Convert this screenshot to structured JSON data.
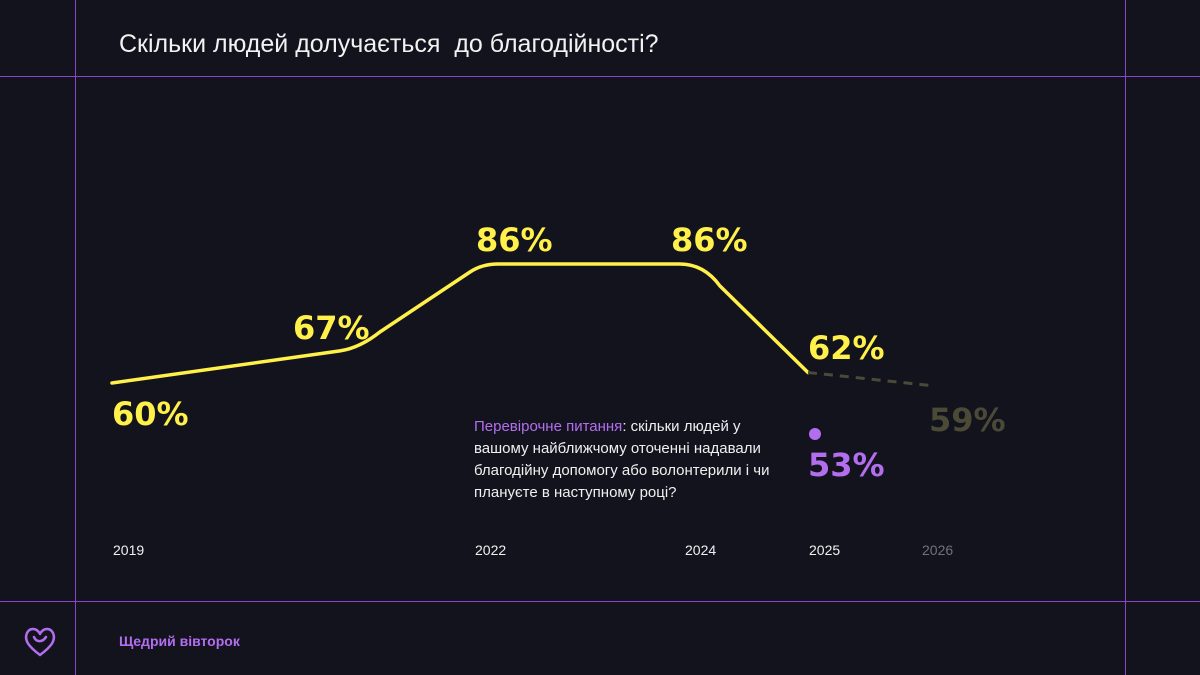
{
  "title": "Скільки людей долучається  до благодійності?",
  "question": {
    "lead": "Перевірочне питання",
    "text": ": скільки людей у вашому найближчому оточенні надавали благодійну допомогу або волонтерили і чи плануєте в наступному році?"
  },
  "footer": {
    "brand": "Щедрий вівторок"
  },
  "colors": {
    "background": "#13131d",
    "frame": "#8a45c8",
    "line": "#fff04a",
    "forecast": "#4a4a37",
    "accent": "#b36ef0"
  },
  "chart_data": {
    "type": "line",
    "title": "Скільки людей долучається  до благодійності?",
    "x": [
      "2019",
      "2022",
      "2024",
      "2025",
      "2026"
    ],
    "series": [
      {
        "name": "actual",
        "x": [
          "2019",
          "2020",
          "2022",
          "2024",
          "2025"
        ],
        "values": [
          60,
          67,
          86,
          86,
          62
        ],
        "labels": [
          "60%",
          "67%",
          "86%",
          "86%",
          "62%"
        ]
      },
      {
        "name": "forecast",
        "x": [
          "2025",
          "2026"
        ],
        "values": [
          62,
          59
        ],
        "labels": [
          "59%"
        ]
      },
      {
        "name": "check-question",
        "x": [
          "2025"
        ],
        "values": [
          53
        ],
        "labels": [
          "53%"
        ]
      }
    ],
    "xlabel": "",
    "ylabel": "",
    "ylim": [
      50,
      90
    ],
    "grid": false,
    "legend": "none"
  }
}
